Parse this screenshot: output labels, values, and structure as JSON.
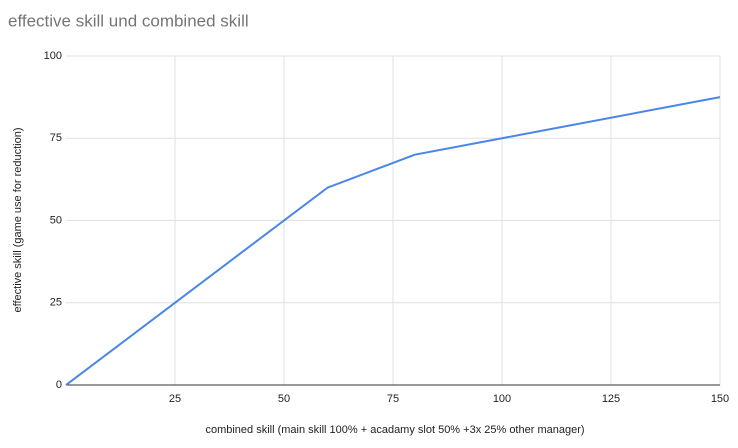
{
  "chart_data": {
    "type": "line",
    "title": "effective skill und combined skill",
    "x_label": "combined skill (main skill 100% + acadamy slot 50% +3x 25% other manager)",
    "y_label": "effective skill (game use for reduction)",
    "x": [
      0,
      60,
      80,
      100,
      150
    ],
    "series": [
      {
        "name": "effective skill",
        "color": "#4a86e8",
        "values": [
          0,
          60,
          70,
          75,
          87.5
        ]
      }
    ],
    "xlim": [
      0,
      150
    ],
    "xticks": [
      25,
      50,
      75,
      100,
      125,
      150
    ],
    "ylim": [
      0,
      100
    ],
    "yticks": [
      0,
      25,
      50,
      75,
      100
    ],
    "grid": true
  }
}
